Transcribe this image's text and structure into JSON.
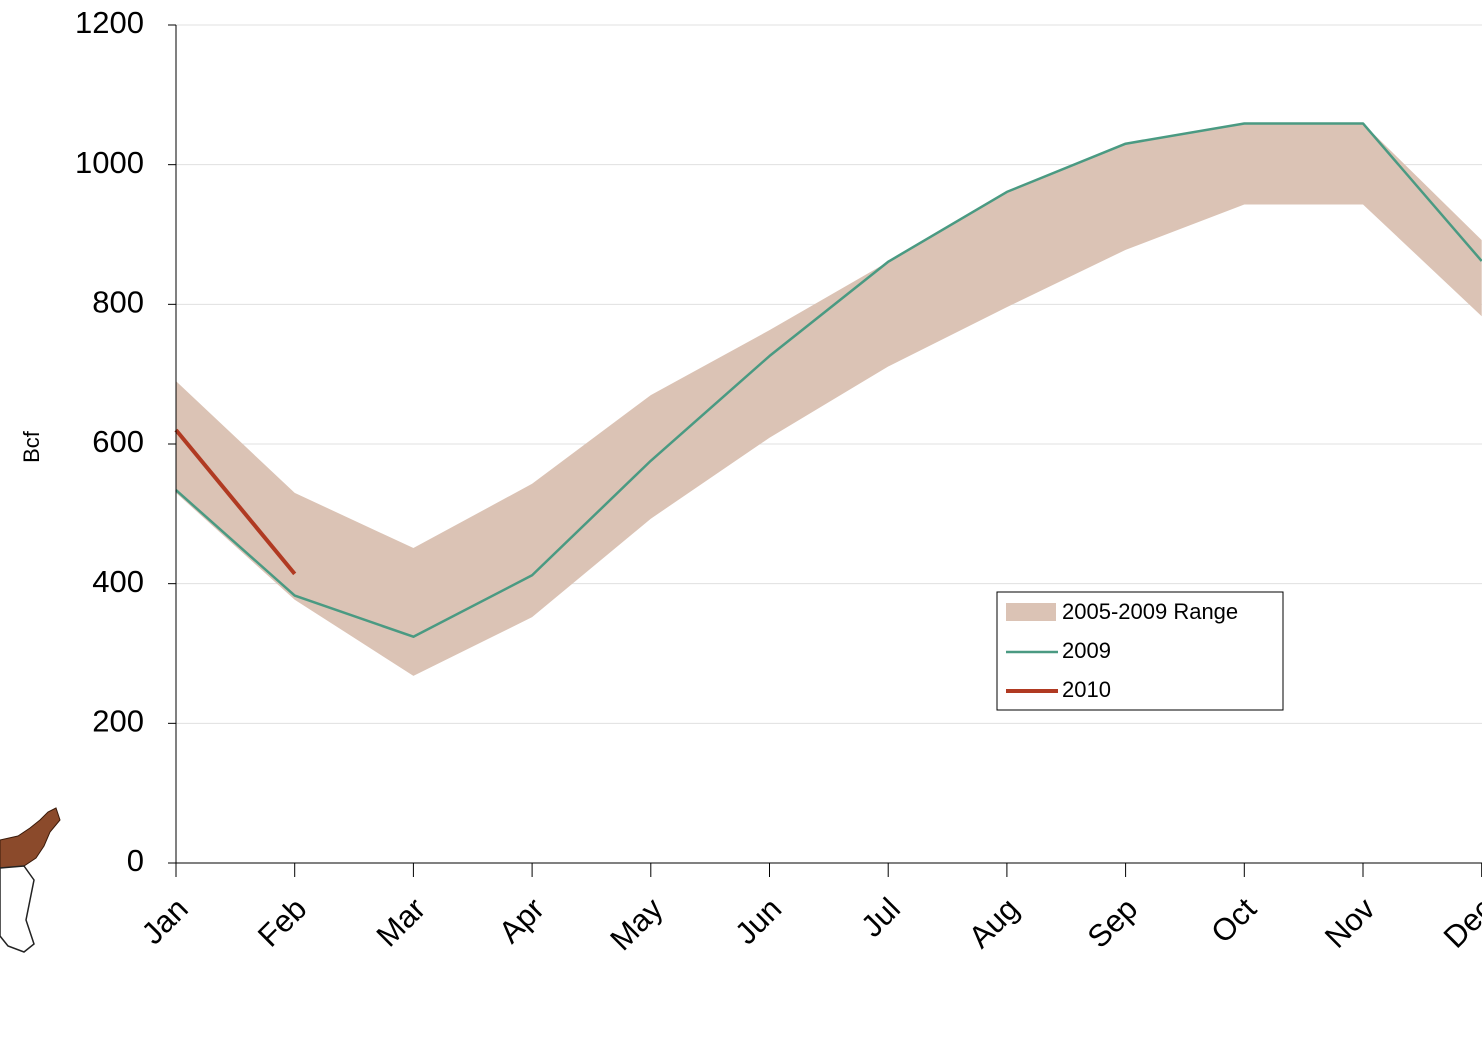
{
  "chart_data": {
    "type": "line",
    "y_label": "Bcf",
    "categories": [
      "Jan",
      "Feb",
      "Mar",
      "Apr",
      "May",
      "Jun",
      "Jul",
      "Aug",
      "Sep",
      "Oct",
      "Nov",
      "Dec"
    ],
    "range": {
      "name": "2005-2009 Range",
      "color": "#dbc3b5",
      "low": [
        530,
        377,
        268,
        352,
        493,
        609,
        711,
        796,
        878,
        943,
        943,
        783
      ],
      "high": [
        690,
        530,
        451,
        543,
        670,
        763,
        861,
        961,
        1030,
        1059,
        1059,
        892
      ]
    },
    "series": [
      {
        "name": "2009",
        "color": "#4a9a82",
        "values": [
          534,
          383,
          324,
          412,
          576,
          726,
          861,
          961,
          1030,
          1059,
          1059,
          862
        ]
      },
      {
        "name": "2010",
        "color": "#b03a22",
        "values": [
          620,
          414,
          null,
          null,
          null,
          null,
          null,
          null,
          null,
          null,
          null,
          null
        ]
      }
    ],
    "ylim": [
      0,
      1200
    ],
    "yticks": [
      0,
      200,
      400,
      600,
      800,
      1000,
      1200
    ],
    "grid": true
  }
}
